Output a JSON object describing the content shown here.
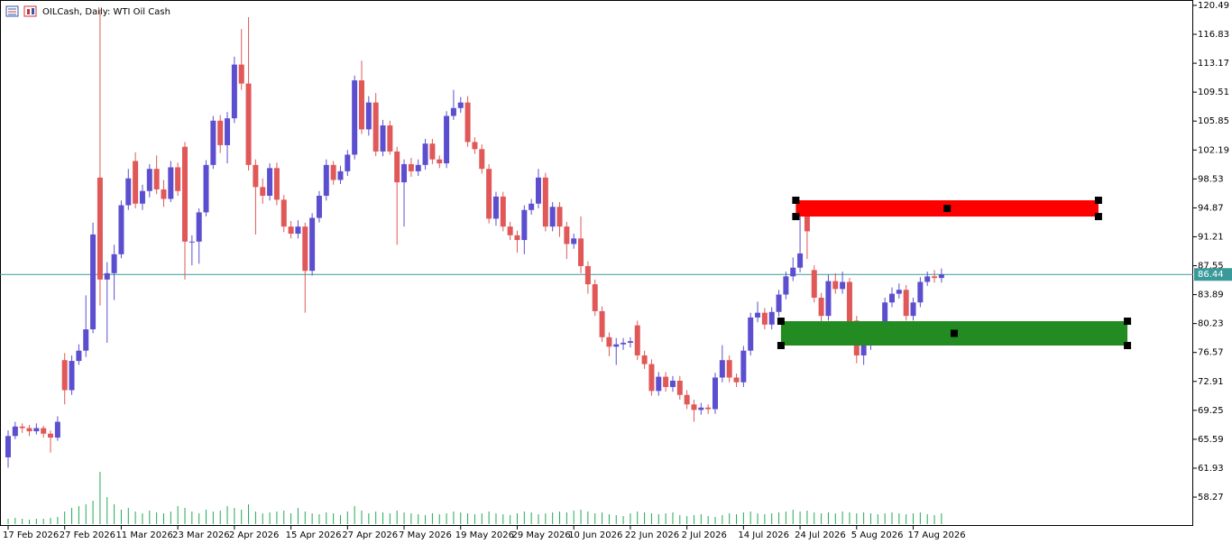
{
  "chart_data": {
    "type": "candlestick",
    "title": "OILCash, Daily:  WTI Oil Cash",
    "up_color": "#5b4fcf",
    "down_color": "#e05858",
    "categories": [
      "17 Feb 2026",
      null,
      null,
      null,
      null,
      null,
      null,
      null,
      "27 Feb 2026",
      null,
      null,
      null,
      null,
      null,
      null,
      null,
      "11 Mar 2026",
      null,
      null,
      null,
      null,
      null,
      null,
      null,
      "23 Mar 2026",
      null,
      null,
      null,
      null,
      null,
      null,
      null,
      "2 Apr 2026",
      null,
      null,
      null,
      null,
      null,
      null,
      null,
      "15 Apr 2026",
      null,
      null,
      null,
      null,
      null,
      null,
      null,
      "27 Apr 2026",
      null,
      null,
      null,
      null,
      null,
      null,
      null,
      "7 May 2026",
      null,
      null,
      null,
      null,
      null,
      null,
      null,
      "19 May 2026",
      null,
      null,
      null,
      null,
      null,
      null,
      null,
      "29 May 2026",
      null,
      null,
      null,
      null,
      null,
      null,
      null,
      "10 Jun 2026",
      null,
      null,
      null,
      null,
      null,
      null,
      null,
      "22 Jun 2026",
      null,
      null,
      null,
      null,
      null,
      null,
      null,
      "2 Jul 2026",
      null,
      null,
      null,
      null,
      null,
      null,
      null,
      "14 Jul 2026",
      null,
      null,
      null,
      null,
      null,
      null,
      null,
      "24 Jul 2026",
      null,
      null,
      null,
      null,
      null,
      null,
      null,
      "5 Aug 2026",
      null,
      null,
      null,
      null,
      null,
      null,
      null,
      "17 Aug 2026",
      null,
      null,
      null,
      null
    ],
    "ohlc": [
      [
        63.3,
        66.7,
        62.0,
        66.0
      ],
      [
        66.0,
        67.8,
        65.6,
        67.2
      ],
      [
        67.2,
        67.6,
        66.4,
        67.0
      ],
      [
        67.0,
        67.4,
        66.0,
        66.6
      ],
      [
        66.6,
        67.6,
        66.2,
        67.0
      ],
      [
        67.0,
        67.3,
        65.8,
        66.3
      ],
      [
        66.3,
        66.7,
        63.9,
        65.8
      ],
      [
        65.8,
        68.5,
        65.4,
        67.8
      ],
      [
        75.6,
        76.5,
        70.0,
        71.8
      ],
      [
        71.8,
        76.2,
        71.2,
        75.5
      ],
      [
        75.5,
        77.6,
        75.0,
        76.8
      ],
      [
        76.8,
        83.8,
        76.0,
        79.5
      ],
      [
        79.5,
        93.0,
        79.0,
        91.5
      ],
      [
        98.7,
        120.0,
        82.5,
        85.8
      ],
      [
        85.8,
        88.0,
        77.8,
        86.6
      ],
      [
        86.6,
        90.2,
        83.2,
        89.0
      ],
      [
        89.0,
        95.8,
        88.5,
        95.2
      ],
      [
        95.2,
        99.8,
        94.6,
        98.6
      ],
      [
        100.8,
        101.9,
        94.8,
        95.4
      ],
      [
        95.4,
        97.8,
        94.6,
        97.0
      ],
      [
        97.0,
        100.4,
        96.2,
        99.8
      ],
      [
        99.8,
        101.5,
        96.6,
        97.2
      ],
      [
        97.2,
        98.4,
        95.0,
        96.0
      ],
      [
        96.0,
        100.8,
        95.6,
        100.0
      ],
      [
        100.0,
        100.6,
        96.4,
        97.0
      ],
      [
        102.6,
        103.2,
        85.8,
        90.6
      ],
      [
        90.6,
        91.4,
        87.6,
        90.6
      ],
      [
        90.6,
        94.8,
        87.8,
        94.3
      ],
      [
        94.3,
        100.9,
        93.8,
        100.3
      ],
      [
        100.3,
        106.5,
        99.8,
        105.9
      ],
      [
        105.9,
        106.6,
        101.8,
        102.8
      ],
      [
        102.8,
        107.0,
        100.5,
        106.2
      ],
      [
        106.2,
        114.0,
        105.6,
        113.0
      ],
      [
        113.0,
        117.5,
        109.8,
        110.6
      ],
      [
        110.6,
        119.0,
        99.6,
        100.3
      ],
      [
        100.3,
        101.0,
        91.5,
        97.5
      ],
      [
        97.5,
        98.6,
        95.4,
        96.4
      ],
      [
        96.4,
        100.5,
        95.8,
        99.9
      ],
      [
        99.9,
        100.6,
        95.2,
        95.9
      ],
      [
        95.9,
        96.5,
        91.8,
        92.5
      ],
      [
        92.5,
        93.2,
        91.0,
        91.6
      ],
      [
        91.6,
        93.3,
        91.0,
        92.5
      ],
      [
        92.5,
        93.0,
        81.6,
        86.9
      ],
      [
        86.9,
        94.2,
        86.3,
        93.6
      ],
      [
        93.6,
        97.0,
        93.0,
        96.4
      ],
      [
        96.4,
        101.0,
        95.8,
        100.3
      ],
      [
        100.3,
        100.8,
        97.8,
        98.4
      ],
      [
        98.4,
        100.2,
        97.9,
        99.5
      ],
      [
        99.5,
        102.2,
        98.9,
        101.6
      ],
      [
        101.6,
        111.6,
        101.0,
        111.0
      ],
      [
        111.0,
        113.5,
        104.2,
        104.8
      ],
      [
        104.8,
        109.0,
        104.0,
        108.2
      ],
      [
        108.2,
        109.4,
        101.4,
        102.0
      ],
      [
        102.0,
        106.0,
        101.4,
        105.3
      ],
      [
        105.3,
        105.9,
        101.6,
        102.0
      ],
      [
        102.0,
        102.6,
        90.2,
        98.1
      ],
      [
        98.1,
        101.0,
        92.5,
        100.4
      ],
      [
        100.4,
        101.2,
        98.8,
        99.5
      ],
      [
        99.5,
        101.0,
        98.9,
        100.3
      ],
      [
        100.3,
        103.6,
        99.7,
        103.0
      ],
      [
        103.0,
        103.6,
        100.4,
        101.0
      ],
      [
        101.0,
        101.5,
        99.9,
        100.5
      ],
      [
        100.5,
        107.1,
        99.9,
        106.5
      ],
      [
        106.5,
        109.8,
        106.0,
        107.5
      ],
      [
        107.5,
        108.9,
        106.9,
        108.2
      ],
      [
        108.2,
        109.0,
        102.6,
        103.2
      ],
      [
        103.2,
        103.8,
        101.7,
        102.3
      ],
      [
        102.3,
        102.9,
        99.2,
        99.8
      ],
      [
        99.8,
        100.4,
        92.9,
        93.5
      ],
      [
        93.5,
        96.9,
        92.6,
        96.3
      ],
      [
        96.3,
        96.9,
        91.9,
        92.5
      ],
      [
        92.5,
        93.1,
        90.8,
        91.4
      ],
      [
        91.4,
        92.0,
        89.2,
        90.8
      ],
      [
        90.8,
        95.2,
        89.0,
        94.6
      ],
      [
        94.6,
        96.0,
        94.0,
        95.4
      ],
      [
        95.4,
        99.8,
        94.8,
        98.7
      ],
      [
        98.7,
        99.3,
        91.9,
        92.5
      ],
      [
        92.5,
        95.6,
        91.9,
        95.0
      ],
      [
        95.0,
        95.6,
        91.2,
        92.5
      ],
      [
        92.5,
        93.1,
        88.4,
        90.3
      ],
      [
        90.3,
        91.6,
        89.7,
        91.0
      ],
      [
        91.0,
        93.8,
        86.6,
        87.5
      ],
      [
        87.5,
        88.1,
        84.0,
        85.2
      ],
      [
        85.2,
        85.8,
        81.2,
        81.8
      ],
      [
        81.8,
        82.4,
        77.9,
        78.5
      ],
      [
        78.5,
        79.1,
        76.1,
        77.3
      ],
      [
        77.3,
        78.4,
        75.0,
        77.6
      ],
      [
        77.6,
        78.4,
        76.9,
        77.8
      ],
      [
        77.8,
        78.5,
        77.2,
        78.0
      ],
      [
        80.0,
        80.6,
        75.6,
        76.2
      ],
      [
        76.2,
        76.8,
        74.5,
        75.1
      ],
      [
        75.1,
        75.7,
        71.1,
        71.7
      ],
      [
        71.7,
        74.1,
        71.1,
        73.5
      ],
      [
        73.5,
        74.1,
        71.6,
        72.2
      ],
      [
        72.2,
        73.6,
        71.6,
        73.0
      ],
      [
        73.0,
        73.6,
        70.6,
        71.2
      ],
      [
        71.2,
        71.8,
        69.4,
        70.0
      ],
      [
        70.0,
        70.6,
        67.8,
        69.3
      ],
      [
        69.3,
        70.2,
        68.7,
        69.6
      ],
      [
        69.6,
        70.0,
        68.8,
        69.4
      ],
      [
        69.4,
        74.0,
        68.8,
        73.4
      ],
      [
        73.4,
        77.5,
        72.8,
        75.6
      ],
      [
        75.6,
        76.2,
        72.8,
        73.4
      ],
      [
        73.4,
        73.9,
        72.2,
        72.8
      ],
      [
        72.8,
        77.4,
        72.2,
        76.8
      ],
      [
        76.8,
        81.6,
        76.2,
        81.0
      ],
      [
        81.0,
        83.0,
        80.4,
        81.6
      ],
      [
        81.6,
        82.2,
        79.5,
        80.1
      ],
      [
        80.1,
        82.3,
        79.5,
        81.7
      ],
      [
        81.7,
        84.5,
        81.1,
        83.9
      ],
      [
        83.9,
        86.8,
        83.3,
        86.2
      ],
      [
        86.2,
        88.6,
        85.6,
        87.3
      ],
      [
        87.3,
        93.8,
        86.7,
        89.1
      ],
      [
        94.0,
        94.6,
        88.4,
        91.9
      ],
      [
        87.0,
        87.6,
        82.9,
        83.5
      ],
      [
        83.5,
        84.1,
        78.8,
        81.2
      ],
      [
        81.2,
        86.4,
        80.6,
        85.6
      ],
      [
        85.6,
        86.6,
        84.0,
        84.6
      ],
      [
        84.6,
        86.8,
        84.0,
        85.5
      ],
      [
        85.5,
        86.0,
        79.9,
        80.5
      ],
      [
        80.6,
        81.2,
        75.2,
        76.2
      ],
      [
        76.2,
        78.9,
        75.0,
        77.5
      ],
      [
        77.5,
        80.1,
        76.9,
        79.5
      ],
      [
        79.5,
        80.2,
        78.4,
        79.0
      ],
      [
        79.0,
        83.5,
        78.4,
        82.9
      ],
      [
        82.9,
        84.8,
        82.3,
        84.0
      ],
      [
        84.0,
        85.3,
        83.4,
        84.5
      ],
      [
        84.5,
        85.1,
        80.6,
        81.2
      ],
      [
        81.2,
        83.5,
        80.6,
        82.9
      ],
      [
        82.9,
        86.1,
        82.3,
        85.5
      ],
      [
        85.5,
        86.8,
        85.0,
        86.2
      ],
      [
        86.2,
        87.0,
        85.4,
        86.0
      ],
      [
        86.0,
        87.2,
        85.4,
        86.44
      ]
    ],
    "volume": [
      6,
      7,
      6,
      5,
      6,
      6,
      7,
      8,
      14,
      18,
      20,
      22,
      26,
      58,
      30,
      22,
      16,
      18,
      14,
      12,
      15,
      13,
      12,
      14,
      20,
      18,
      14,
      12,
      16,
      14,
      15,
      20,
      18,
      16,
      22,
      14,
      12,
      13,
      14,
      15,
      12,
      18,
      14,
      12,
      11,
      13,
      12,
      10,
      14,
      20,
      15,
      12,
      14,
      13,
      12,
      15,
      13,
      12,
      11,
      10,
      12,
      11,
      12,
      14,
      13,
      12,
      11,
      12,
      14,
      12,
      11,
      10,
      12,
      14,
      13,
      11,
      12,
      13,
      14,
      13,
      15,
      16,
      14,
      12,
      13,
      11,
      10,
      9,
      12,
      14,
      13,
      12,
      11,
      12,
      13,
      10,
      9,
      10,
      11,
      9,
      8,
      10,
      12,
      11,
      13,
      14,
      12,
      11,
      12,
      13,
      14,
      16,
      14,
      15,
      13,
      12,
      13,
      12,
      14,
      13,
      12,
      13,
      12,
      11,
      12,
      13,
      12,
      11,
      12,
      13,
      11,
      10,
      12
    ],
    "volume_color": "#22aa55",
    "ylim": [
      54.62,
      121.17
    ],
    "yticks": [
      120.49,
      116.83,
      113.17,
      109.51,
      105.85,
      102.19,
      98.53,
      94.87,
      91.21,
      87.55,
      83.89,
      80.23,
      76.57,
      72.91,
      69.25,
      65.59,
      61.93,
      58.27
    ],
    "last_price": 86.44,
    "last_price_color": "#3a9a9a",
    "zones": [
      {
        "color": "#ff0000",
        "x": [
          111.4,
          154.2
        ],
        "y": [
          93.77,
          95.83
        ]
      },
      {
        "color": "#228b22",
        "x": [
          109.3,
          158.3
        ],
        "y": [
          77.45,
          80.53
        ]
      }
    ],
    "grid": false
  }
}
